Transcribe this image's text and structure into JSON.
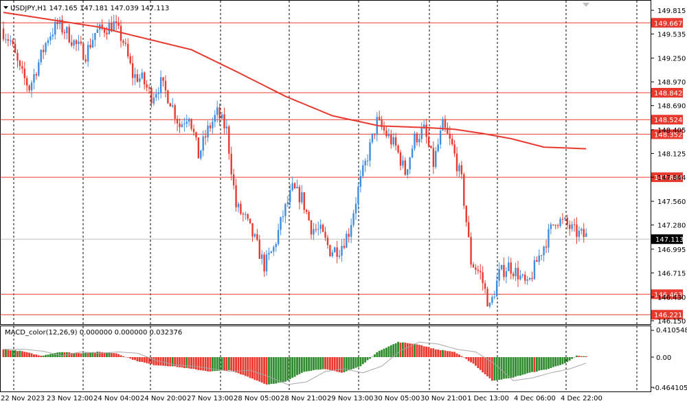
{
  "header": {
    "title": "USDJPY,H1  147.165 147.181 147.039 147.113"
  },
  "macd": {
    "title": "MACD_color(12,26,9) 0.000000 0.000000 0.032376",
    "axis_labels": [
      "0.410548",
      "0.00",
      "-0.464105"
    ]
  },
  "colors": {
    "bull": "#3c8de0",
    "bear": "#e8392f",
    "ma": "#e8392f",
    "level": "#e8392f",
    "macd_up": "#2e8b2e",
    "macd_down": "#e8392f",
    "signal": "#a6a6a6"
  },
  "chart_data": {
    "type": "candlestick",
    "symbol": "USDJPY",
    "timeframe": "H1",
    "last_price": 147.113,
    "ylim": [
      146.15,
      149.815
    ],
    "price_ticks": [
      149.815,
      149.535,
      149.25,
      148.97,
      148.69,
      148.405,
      148.125,
      147.844,
      147.56,
      147.28,
      146.995,
      146.715,
      146.43,
      146.15
    ],
    "x_labels": [
      "22 Nov 2023",
      "23 Nov 12:00",
      "24 Nov 04:00",
      "24 Nov 20:00",
      "27 Nov 13:00",
      "28 Nov 05:00",
      "28 Nov 21:00",
      "29 Nov 13:00",
      "30 Nov 05:00",
      "30 Nov 21:00",
      "1 Dec 13:00",
      "4 Dec 06:00",
      "4 Dec 22:00"
    ],
    "levels": [
      149.667,
      148.842,
      148.524,
      148.352,
      147.844,
      146.463,
      146.221
    ],
    "price_path": [
      [
        0,
        149.6
      ],
      [
        4,
        149.45
      ],
      [
        8,
        149.1
      ],
      [
        12,
        148.9
      ],
      [
        16,
        149.2
      ],
      [
        20,
        149.5
      ],
      [
        24,
        149.65
      ],
      [
        28,
        149.55
      ],
      [
        32,
        149.4
      ],
      [
        36,
        149.3
      ],
      [
        40,
        149.55
      ],
      [
        44,
        149.6
      ],
      [
        48,
        149.65
      ],
      [
        52,
        149.45
      ],
      [
        56,
        149.05
      ],
      [
        60,
        149.0
      ],
      [
        64,
        148.8
      ],
      [
        68,
        148.95
      ],
      [
        72,
        148.75
      ],
      [
        76,
        148.45
      ],
      [
        80,
        148.6
      ],
      [
        84,
        148.1
      ],
      [
        88,
        148.4
      ],
      [
        92,
        148.6
      ],
      [
        96,
        148.4
      ],
      [
        100,
        147.5
      ],
      [
        104,
        147.35
      ],
      [
        108,
        147.1
      ],
      [
        112,
        146.8
      ],
      [
        116,
        147.0
      ],
      [
        120,
        147.4
      ],
      [
        124,
        147.7
      ],
      [
        128,
        147.6
      ],
      [
        132,
        147.25
      ],
      [
        136,
        147.2
      ],
      [
        140,
        146.98
      ],
      [
        144,
        147.0
      ],
      [
        148,
        147.2
      ],
      [
        152,
        147.7
      ],
      [
        156,
        148.1
      ],
      [
        160,
        148.5
      ],
      [
        164,
        148.35
      ],
      [
        168,
        148.2
      ],
      [
        172,
        147.9
      ],
      [
        176,
        148.3
      ],
      [
        180,
        148.4
      ],
      [
        184,
        148.0
      ],
      [
        188,
        148.45
      ],
      [
        192,
        148.2
      ],
      [
        196,
        147.8
      ],
      [
        200,
        146.85
      ],
      [
        204,
        146.7
      ],
      [
        208,
        146.3
      ],
      [
        212,
        146.7
      ],
      [
        216,
        146.8
      ],
      [
        220,
        146.7
      ],
      [
        224,
        146.55
      ],
      [
        228,
        146.85
      ],
      [
        232,
        147.1
      ],
      [
        236,
        147.35
      ],
      [
        240,
        147.3
      ],
      [
        244,
        147.2
      ],
      [
        248,
        147.15
      ]
    ],
    "ma_path": [
      [
        0,
        149.79
      ],
      [
        40,
        149.62
      ],
      [
        80,
        149.35
      ],
      [
        100,
        149.08
      ],
      [
        120,
        148.8
      ],
      [
        140,
        148.57
      ],
      [
        160,
        148.45
      ],
      [
        180,
        148.43
      ],
      [
        192,
        148.41
      ],
      [
        204,
        148.36
      ],
      [
        216,
        148.3
      ],
      [
        230,
        148.2
      ],
      [
        248,
        148.18
      ]
    ],
    "macd_hist_path": [
      [
        0,
        0.12
      ],
      [
        8,
        0.09
      ],
      [
        16,
        0.02
      ],
      [
        24,
        0.08
      ],
      [
        32,
        0.06
      ],
      [
        40,
        0.08
      ],
      [
        48,
        0.06
      ],
      [
        56,
        -0.05
      ],
      [
        64,
        -0.12
      ],
      [
        72,
        -0.14
      ],
      [
        80,
        -0.18
      ],
      [
        88,
        -0.22
      ],
      [
        96,
        -0.2
      ],
      [
        104,
        -0.3
      ],
      [
        112,
        -0.42
      ],
      [
        120,
        -0.38
      ],
      [
        128,
        -0.22
      ],
      [
        136,
        -0.18
      ],
      [
        144,
        -0.24
      ],
      [
        152,
        -0.14
      ],
      [
        160,
        0.1
      ],
      [
        168,
        0.23
      ],
      [
        176,
        0.2
      ],
      [
        184,
        0.12
      ],
      [
        192,
        0.08
      ],
      [
        200,
        -0.1
      ],
      [
        208,
        -0.36
      ],
      [
        216,
        -0.32
      ],
      [
        224,
        -0.24
      ],
      [
        232,
        -0.18
      ],
      [
        240,
        -0.08
      ],
      [
        244,
        0.02
      ],
      [
        248,
        0.01
      ]
    ]
  }
}
